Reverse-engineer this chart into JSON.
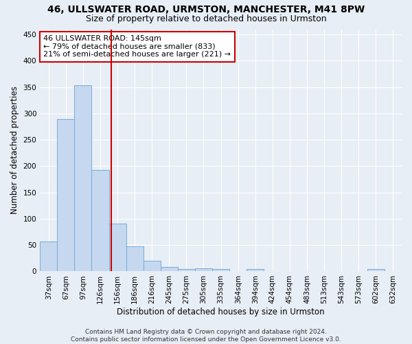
{
  "title": "46, ULLSWATER ROAD, URMSTON, MANCHESTER, M41 8PW",
  "subtitle": "Size of property relative to detached houses in Urmston",
  "xlabel": "Distribution of detached houses by size in Urmston",
  "ylabel": "Number of detached properties",
  "categories": [
    "37sqm",
    "67sqm",
    "97sqm",
    "126sqm",
    "156sqm",
    "186sqm",
    "216sqm",
    "245sqm",
    "275sqm",
    "305sqm",
    "335sqm",
    "364sqm",
    "394sqm",
    "424sqm",
    "454sqm",
    "483sqm",
    "513sqm",
    "543sqm",
    "573sqm",
    "602sqm",
    "632sqm"
  ],
  "values": [
    57,
    290,
    354,
    193,
    91,
    47,
    20,
    9,
    5,
    6,
    5,
    0,
    5,
    0,
    0,
    0,
    0,
    0,
    0,
    5,
    0
  ],
  "bar_color": "#c5d8f0",
  "bar_edge_color": "#7aaad4",
  "vline_color": "#cc0000",
  "annotation_line1": "46 ULLSWATER ROAD: 145sqm",
  "annotation_line2": "← 79% of detached houses are smaller (833)",
  "annotation_line3": "21% of semi-detached houses are larger (221) →",
  "annotation_box_color": "#ffffff",
  "annotation_box_edge": "#cc0000",
  "ylim": [
    0,
    460
  ],
  "yticks": [
    0,
    50,
    100,
    150,
    200,
    250,
    300,
    350,
    400,
    450
  ],
  "background_color": "#e8eef5",
  "plot_bg_color": "#e8eef5",
  "footer": "Contains HM Land Registry data © Crown copyright and database right 2024.\nContains public sector information licensed under the Open Government Licence v3.0.",
  "title_fontsize": 10,
  "subtitle_fontsize": 9,
  "axis_label_fontsize": 8.5,
  "tick_fontsize": 7.5,
  "annotation_fontsize": 8,
  "footer_fontsize": 6.5
}
